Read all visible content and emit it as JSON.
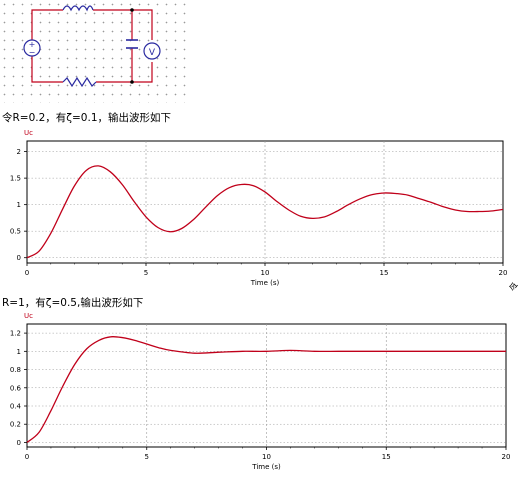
{
  "captions": {
    "first": "令R=0.2，有ζ=0.1，输出波形如下",
    "second": "R=1，有ζ=0.5,输出波形如下",
    "side_mark": "令"
  },
  "circuit": {
    "voltmeter_symbol": "V",
    "source_plus": "+",
    "source_minus": "−"
  },
  "colors": {
    "curve": "#c0001a",
    "wire": "#c0001a",
    "grid": "#9a9a9a",
    "axis": "#000000",
    "title": "#c0001a"
  },
  "chart_data": [
    {
      "type": "line",
      "title": "Uc",
      "xlabel": "Time (s)",
      "ylabel": "",
      "xlim": [
        0,
        20
      ],
      "ylim": [
        -0.1,
        2.2
      ],
      "xticks": [
        0,
        5,
        10,
        15,
        20
      ],
      "yticks": [
        0,
        0.5,
        1,
        1.5,
        2
      ],
      "ytick_labels": [
        "0",
        "0.5",
        "1",
        "1.5",
        "2"
      ],
      "grid": true,
      "x": [
        0,
        0.5,
        1,
        1.5,
        2,
        2.5,
        3,
        3.5,
        4,
        4.5,
        5,
        5.5,
        6,
        6.5,
        7,
        7.5,
        8,
        8.5,
        9,
        9.5,
        10,
        10.5,
        11,
        11.5,
        12,
        12.5,
        13,
        13.5,
        14,
        14.5,
        15,
        15.5,
        16,
        16.5,
        17,
        17.5,
        18,
        18.5,
        19,
        19.5,
        20
      ],
      "series": [
        {
          "values": [
            0.0,
            0.12,
            0.46,
            0.92,
            1.36,
            1.65,
            1.73,
            1.62,
            1.38,
            1.06,
            0.77,
            0.57,
            0.49,
            0.55,
            0.72,
            0.95,
            1.17,
            1.32,
            1.38,
            1.36,
            1.24,
            1.06,
            0.9,
            0.78,
            0.74,
            0.77,
            0.87,
            1.0,
            1.11,
            1.19,
            1.22,
            1.21,
            1.18,
            1.11,
            1.04,
            0.96,
            0.9,
            0.87,
            0.87,
            0.88,
            0.91
          ]
        }
      ]
    },
    {
      "type": "line",
      "title": "Uc",
      "xlabel": "Time (s)",
      "ylabel": "",
      "xlim": [
        0,
        20
      ],
      "ylim": [
        -0.05,
        1.3
      ],
      "xticks": [
        0,
        5,
        10,
        15,
        20
      ],
      "yticks": [
        0,
        0.2,
        0.4,
        0.6,
        0.8,
        1,
        1.2
      ],
      "ytick_labels": [
        "0",
        "0.2",
        "0.4",
        "0.6",
        "0.8",
        "1",
        "1.2"
      ],
      "grid": true,
      "x": [
        0,
        0.5,
        1,
        1.5,
        2,
        2.5,
        3,
        3.5,
        4,
        4.5,
        5,
        5.5,
        6,
        7,
        8,
        9,
        10,
        11,
        12,
        13,
        14,
        15,
        16,
        17,
        18,
        19,
        20
      ],
      "series": [
        {
          "values": [
            0.0,
            0.11,
            0.35,
            0.62,
            0.86,
            1.03,
            1.12,
            1.16,
            1.15,
            1.12,
            1.08,
            1.04,
            1.01,
            0.98,
            0.99,
            1.0,
            1.0,
            1.01,
            1.0,
            1.0,
            1.0,
            1.0,
            1.0,
            1.0,
            1.0,
            1.0,
            1.0
          ]
        }
      ]
    }
  ]
}
